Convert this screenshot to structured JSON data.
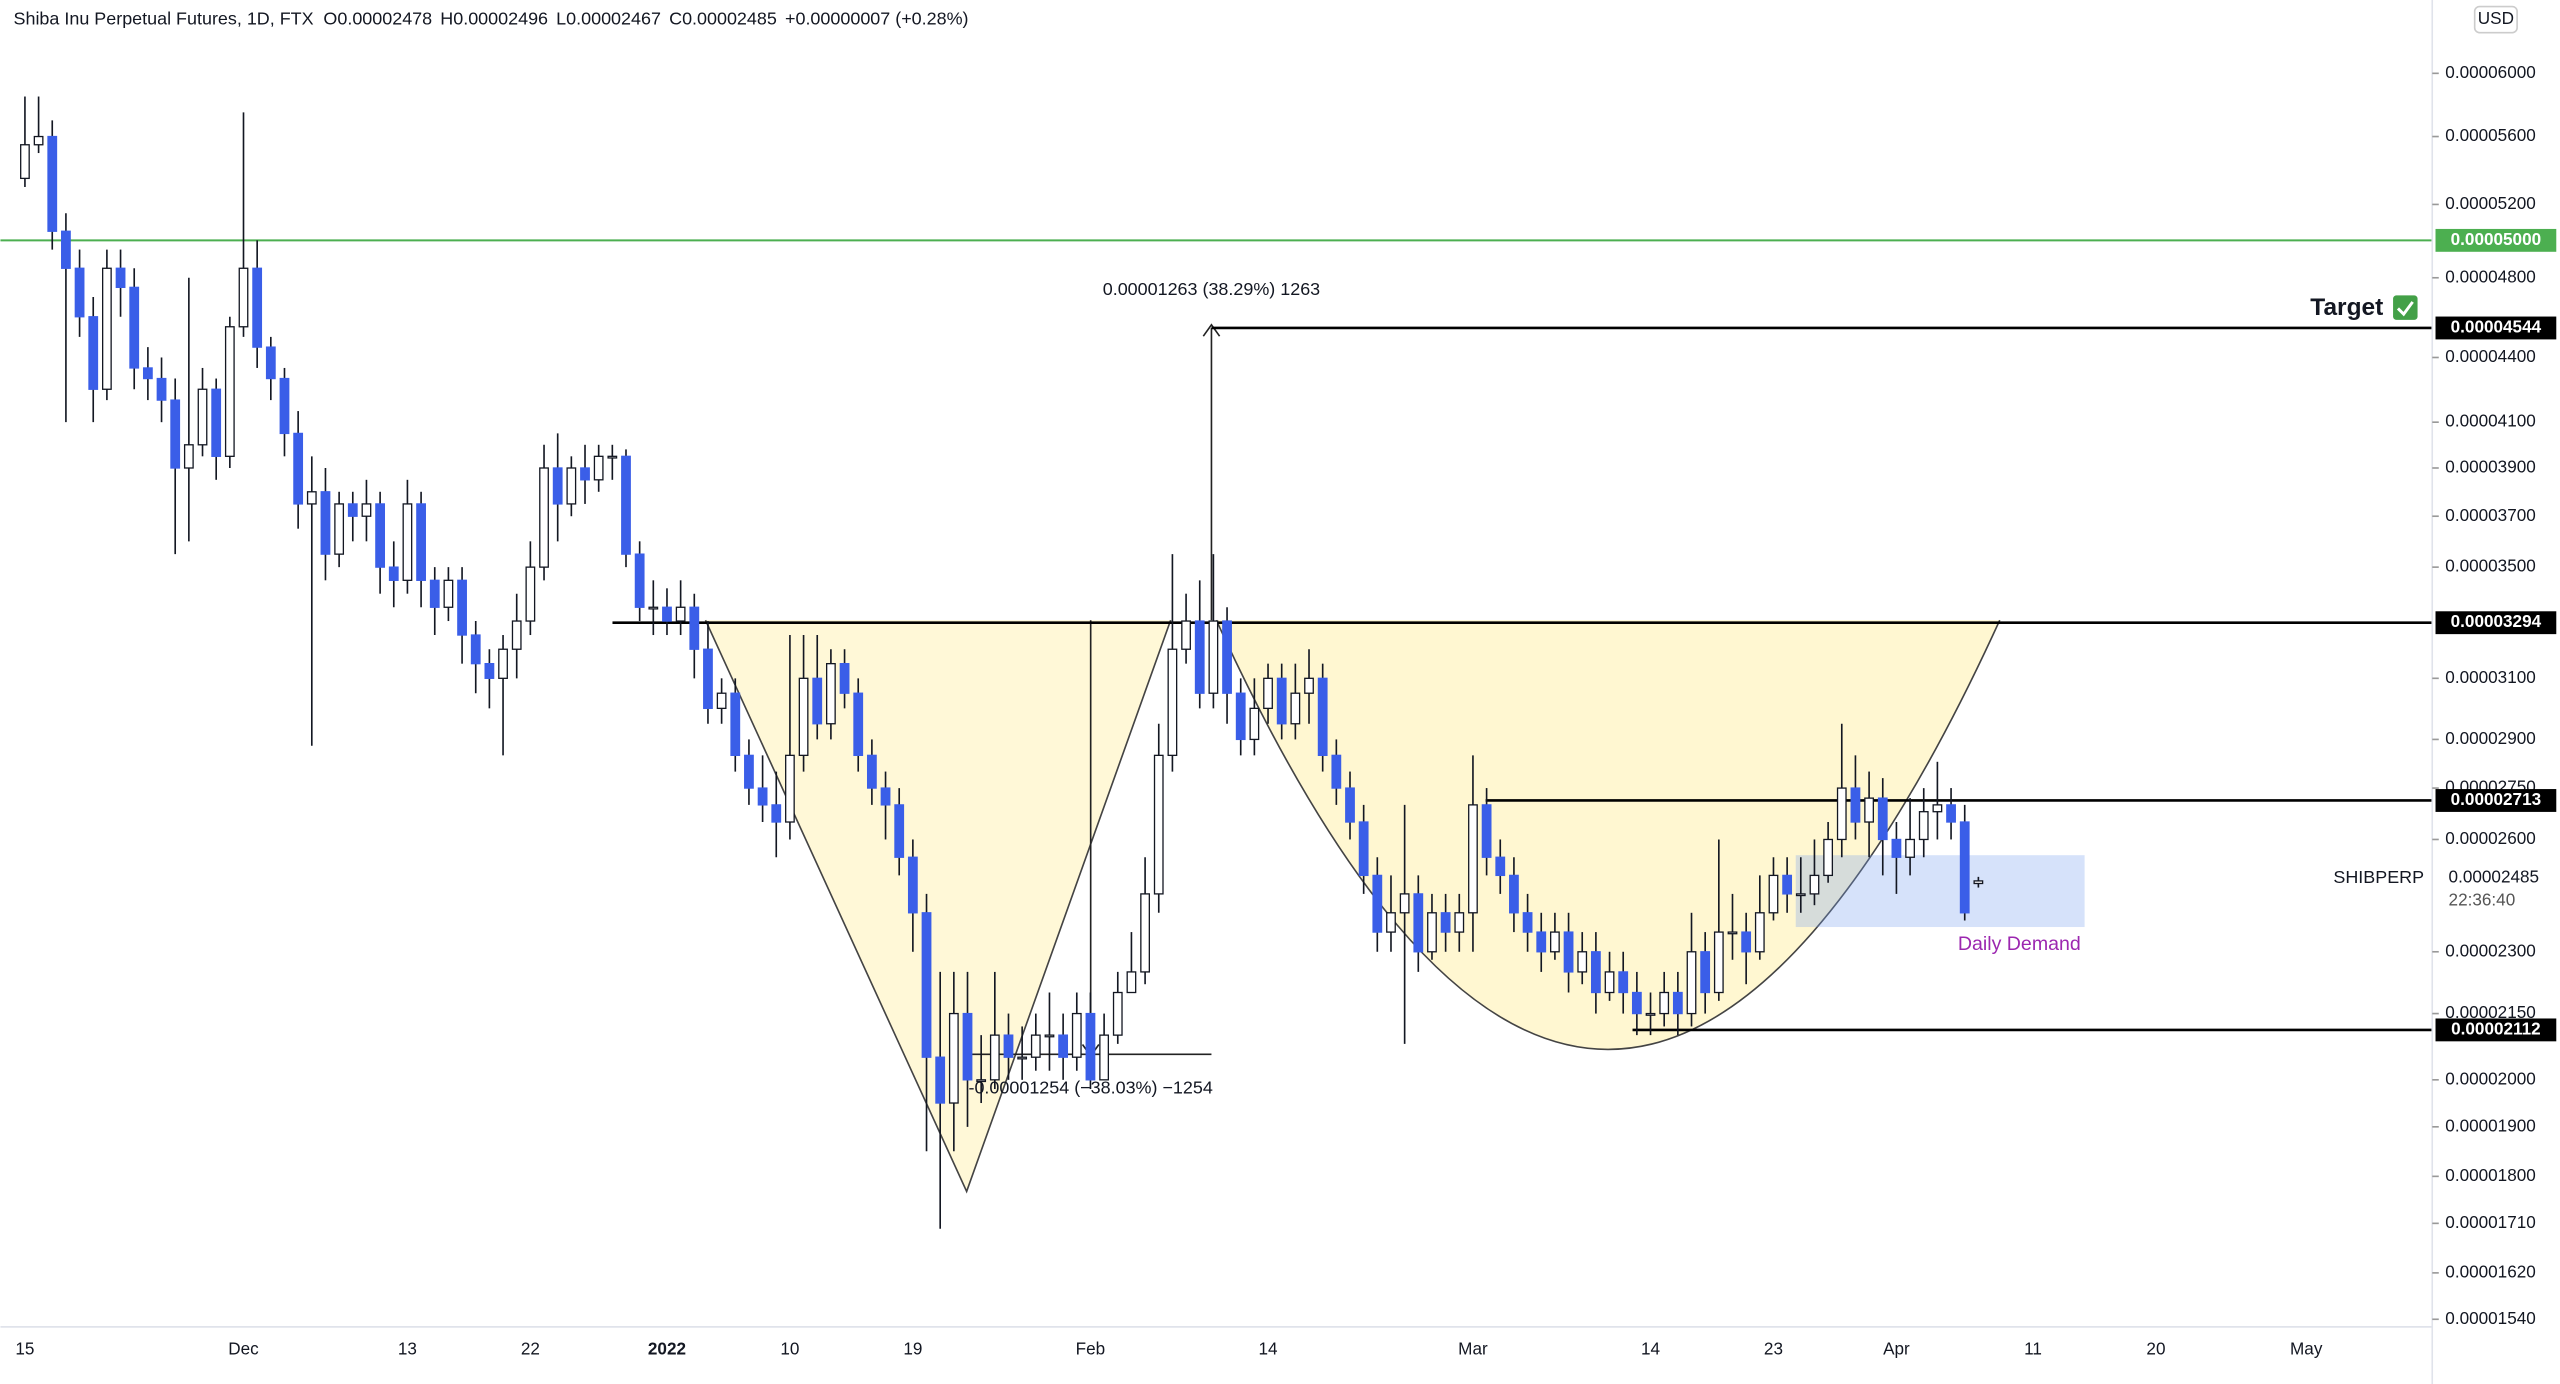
{
  "header": {
    "title": "Shiba Inu Perpetual Futures, 1D, FTX",
    "items": [
      "O0.00002478",
      "H0.00002496",
      "L0.00002467",
      "C0.00002485",
      "+0.00000007 (+0.28%)"
    ],
    "currency": "USD"
  },
  "chart_data": {
    "type": "candlestick",
    "log_scale": true,
    "grid": false,
    "ylim": [
      1.53e-05,
      6.5e-05
    ],
    "yticks": [
      {
        "value": 6e-05,
        "label": "0.00006000"
      },
      {
        "value": 5.6e-05,
        "label": "0.00005600"
      },
      {
        "value": 5.2e-05,
        "label": "0.00005200"
      },
      {
        "value": 4.8e-05,
        "label": "0.00004800"
      },
      {
        "value": 4.4e-05,
        "label": "0.00004400"
      },
      {
        "value": 4.1e-05,
        "label": "0.00004100"
      },
      {
        "value": 3.9e-05,
        "label": "0.00003900"
      },
      {
        "value": 3.7e-05,
        "label": "0.00003700"
      },
      {
        "value": 3.5e-05,
        "label": "0.00003500"
      },
      {
        "value": 3.1e-05,
        "label": "0.00003100"
      },
      {
        "value": 2.9e-05,
        "label": "0.00002900"
      },
      {
        "value": 2.75e-05,
        "label": "0.00002750"
      },
      {
        "value": 2.6e-05,
        "label": "0.00002600"
      },
      {
        "value": 2.3e-05,
        "label": "0.00002300"
      },
      {
        "value": 2.15e-05,
        "label": "0.00002150"
      },
      {
        "value": 2e-05,
        "label": "0.00002000"
      },
      {
        "value": 1.9e-05,
        "label": "0.00001900"
      },
      {
        "value": 1.8e-05,
        "label": "0.00001800"
      },
      {
        "value": 1.71e-05,
        "label": "0.00001710"
      },
      {
        "value": 1.62e-05,
        "label": "0.00001620"
      },
      {
        "value": 1.54e-05,
        "label": "0.00001540"
      }
    ],
    "categories": [
      "15",
      null,
      null,
      null,
      null,
      null,
      null,
      null,
      null,
      null,
      null,
      null,
      null,
      null,
      null,
      null,
      "Dec",
      null,
      null,
      null,
      null,
      null,
      null,
      null,
      null,
      null,
      null,
      null,
      "13",
      null,
      null,
      null,
      null,
      null,
      null,
      null,
      null,
      "22",
      null,
      null,
      null,
      null,
      null,
      null,
      null,
      null,
      null,
      "2022",
      null,
      null,
      null,
      null,
      null,
      null,
      null,
      null,
      "10",
      null,
      null,
      null,
      null,
      null,
      null,
      null,
      null,
      "19",
      null,
      null,
      null,
      null,
      null,
      null,
      null,
      null,
      null,
      null,
      null,
      null,
      "Feb",
      null,
      null,
      null,
      null,
      null,
      null,
      null,
      null,
      null,
      null,
      null,
      null,
      "14",
      null,
      null,
      null,
      null,
      null,
      null,
      null,
      null,
      null,
      null,
      null,
      null,
      null,
      null,
      "Mar",
      null,
      null,
      null,
      null,
      null,
      null,
      null,
      null,
      null,
      null,
      null,
      null,
      "14",
      null,
      null,
      null,
      null,
      null,
      null,
      null,
      null,
      "23",
      null,
      null,
      null,
      null,
      null,
      null,
      null,
      null,
      "Apr",
      null,
      null,
      null,
      null,
      null,
      null,
      null,
      null,
      null,
      "11",
      null,
      null,
      null,
      null,
      null,
      null,
      null,
      null,
      "20",
      null,
      null,
      null,
      null,
      null,
      null,
      null,
      null,
      null,
      null,
      "May"
    ],
    "up_color": "#ffffff",
    "down_color": "#3a5ee8",
    "wick_color": "#131722",
    "open": [
      5.35e-05,
      5.55e-05,
      5.6e-05,
      5.05e-05,
      4.85e-05,
      4.6e-05,
      4.25e-05,
      4.85e-05,
      4.75e-05,
      4.35e-05,
      4.3e-05,
      4.2e-05,
      3.9e-05,
      4e-05,
      4.25e-05,
      3.95e-05,
      4.55e-05,
      4.85e-05,
      4.45e-05,
      4.3e-05,
      4.05e-05,
      3.75e-05,
      3.8e-05,
      3.55e-05,
      3.75e-05,
      3.7e-05,
      3.75e-05,
      3.5e-05,
      3.45e-05,
      3.75e-05,
      3.45e-05,
      3.35e-05,
      3.45e-05,
      3.25e-05,
      3.15e-05,
      3.1e-05,
      3.2e-05,
      3.3e-05,
      3.5e-05,
      3.9e-05,
      3.75e-05,
      3.9e-05,
      3.85e-05,
      3.95e-05,
      3.95e-05,
      3.55e-05,
      3.35e-05,
      3.35e-05,
      3.3e-05,
      3.35e-05,
      3.2e-05,
      3e-05,
      3.05e-05,
      2.85e-05,
      2.75e-05,
      2.7e-05,
      2.65e-05,
      2.85e-05,
      3.1e-05,
      2.95e-05,
      3.15e-05,
      3.05e-05,
      2.85e-05,
      2.75e-05,
      2.7e-05,
      2.55e-05,
      2.4e-05,
      2.05e-05,
      1.95e-05,
      2.15e-05,
      2e-05,
      2e-05,
      2.1e-05,
      2.05e-05,
      2.05e-05,
      2.1e-05,
      2.1e-05,
      2.05e-05,
      2.15e-05,
      2e-05,
      2.1e-05,
      2.2e-05,
      2.25e-05,
      2.45e-05,
      2.85e-05,
      3.2e-05,
      3.3e-05,
      3.05e-05,
      3.3e-05,
      3.05e-05,
      2.9e-05,
      3e-05,
      3.1e-05,
      2.95e-05,
      3.05e-05,
      3.1e-05,
      2.85e-05,
      2.75e-05,
      2.65e-05,
      2.5e-05,
      2.35e-05,
      2.4e-05,
      2.45e-05,
      2.3e-05,
      2.4e-05,
      2.35e-05,
      2.4e-05,
      2.7e-05,
      2.55e-05,
      2.5e-05,
      2.4e-05,
      2.35e-05,
      2.3e-05,
      2.35e-05,
      2.25e-05,
      2.3e-05,
      2.2e-05,
      2.25e-05,
      2.2e-05,
      2.15e-05,
      2.15e-05,
      2.2e-05,
      2.15e-05,
      2.3e-05,
      2.2e-05,
      2.35e-05,
      2.35e-05,
      2.3e-05,
      2.4e-05,
      2.5e-05,
      2.45e-05,
      2.45e-05,
      2.5e-05,
      2.6e-05,
      2.75e-05,
      2.65e-05,
      2.72e-05,
      2.6e-05,
      2.55e-05,
      2.6e-05,
      2.68e-05,
      2.7e-05,
      2.65e-05,
      2.478e-05,
      null,
      null,
      null,
      null,
      null,
      null,
      null,
      null,
      null,
      null,
      null,
      null,
      null,
      null,
      null,
      null,
      null,
      null,
      null,
      null,
      null,
      null,
      null,
      null
    ],
    "high": [
      5.85e-05,
      5.85e-05,
      5.7e-05,
      5.15e-05,
      4.95e-05,
      4.7e-05,
      4.95e-05,
      4.95e-05,
      4.85e-05,
      4.45e-05,
      4.4e-05,
      4.3e-05,
      4.8e-05,
      4.35e-05,
      4.3e-05,
      4.6e-05,
      5.75e-05,
      5e-05,
      4.5e-05,
      4.35e-05,
      4.15e-05,
      3.95e-05,
      3.9e-05,
      3.8e-05,
      3.8e-05,
      3.85e-05,
      3.8e-05,
      3.6e-05,
      3.85e-05,
      3.8e-05,
      3.5e-05,
      3.5e-05,
      3.5e-05,
      3.3e-05,
      3.2e-05,
      3.25e-05,
      3.4e-05,
      3.6e-05,
      4e-05,
      4.05e-05,
      3.95e-05,
      4e-05,
      4e-05,
      4e-05,
      3.98e-05,
      3.6e-05,
      3.45e-05,
      3.42e-05,
      3.45e-05,
      3.4e-05,
      3.3e-05,
      3.1e-05,
      3.1e-05,
      2.9e-05,
      2.85e-05,
      2.8e-05,
      3.25e-05,
      3.25e-05,
      3.25e-05,
      3.2e-05,
      3.2e-05,
      3.1e-05,
      2.9e-05,
      2.8e-05,
      2.75e-05,
      2.6e-05,
      2.45e-05,
      2.25e-05,
      2.25e-05,
      2.25e-05,
      2.1e-05,
      2.25e-05,
      2.15e-05,
      2.12e-05,
      2.15e-05,
      2.2e-05,
      2.15e-05,
      2.2e-05,
      2.2e-05,
      2.15e-05,
      2.25e-05,
      2.35e-05,
      2.55e-05,
      2.95e-05,
      3.55e-05,
      3.4e-05,
      3.45e-05,
      3.55e-05,
      3.35e-05,
      3.1e-05,
      3.1e-05,
      3.15e-05,
      3.15e-05,
      3.15e-05,
      3.2e-05,
      3.15e-05,
      2.9e-05,
      2.8e-05,
      2.7e-05,
      2.55e-05,
      2.5e-05,
      2.7e-05,
      2.5e-05,
      2.45e-05,
      2.45e-05,
      2.45e-05,
      2.85e-05,
      2.75e-05,
      2.6e-05,
      2.55e-05,
      2.45e-05,
      2.4e-05,
      2.4e-05,
      2.4e-05,
      2.35e-05,
      2.35e-05,
      2.3e-05,
      2.3e-05,
      2.25e-05,
      2.2e-05,
      2.25e-05,
      2.25e-05,
      2.4e-05,
      2.35e-05,
      2.6e-05,
      2.45e-05,
      2.4e-05,
      2.5e-05,
      2.55e-05,
      2.55e-05,
      2.55e-05,
      2.6e-05,
      2.65e-05,
      2.95e-05,
      2.85e-05,
      2.8e-05,
      2.78e-05,
      2.65e-05,
      2.72e-05,
      2.75e-05,
      2.83e-05,
      2.75e-05,
      2.7e-05,
      2.496e-05,
      null,
      null,
      null,
      null,
      null,
      null,
      null,
      null,
      null,
      null,
      null,
      null,
      null,
      null,
      null,
      null,
      null,
      null,
      null,
      null,
      null,
      null,
      null,
      null
    ],
    "low": [
      5.3e-05,
      5.5e-05,
      4.95e-05,
      4.1e-05,
      4.5e-05,
      4.1e-05,
      4.2e-05,
      4.6e-05,
      4.25e-05,
      4.2e-05,
      4.1e-05,
      3.55e-05,
      3.6e-05,
      3.95e-05,
      3.85e-05,
      3.9e-05,
      4.5e-05,
      4.35e-05,
      4.2e-05,
      3.95e-05,
      3.65e-05,
      2.88e-05,
      3.45e-05,
      3.5e-05,
      3.6e-05,
      3.6e-05,
      3.4e-05,
      3.35e-05,
      3.4e-05,
      3.35e-05,
      3.25e-05,
      3.3e-05,
      3.15e-05,
      3.05e-05,
      3e-05,
      2.85e-05,
      3.1e-05,
      3.25e-05,
      3.45e-05,
      3.6e-05,
      3.7e-05,
      3.75e-05,
      3.8e-05,
      3.85e-05,
      3.5e-05,
      3.3e-05,
      3.25e-05,
      3.25e-05,
      3.25e-05,
      3.1e-05,
      2.95e-05,
      2.95e-05,
      2.8e-05,
      2.7e-05,
      2.65e-05,
      2.55e-05,
      2.6e-05,
      2.8e-05,
      2.9e-05,
      2.9e-05,
      3e-05,
      2.8e-05,
      2.7e-05,
      2.6e-05,
      2.5e-05,
      2.3e-05,
      1.85e-05,
      1.7e-05,
      1.85e-05,
      1.9e-05,
      1.95e-05,
      1.98e-05,
      2e-05,
      2e-05,
      2.02e-05,
      2.02e-05,
      2e-05,
      2.02e-05,
      1.98e-05,
      2e-05,
      2.08e-05,
      2.2e-05,
      2.22e-05,
      2.4e-05,
      2.8e-05,
      3.15e-05,
      3e-05,
      3e-05,
      2.95e-05,
      2.85e-05,
      2.85e-05,
      2.95e-05,
      2.9e-05,
      2.9e-05,
      2.95e-05,
      2.8e-05,
      2.7e-05,
      2.6e-05,
      2.45e-05,
      2.3e-05,
      2.3e-05,
      2.08e-05,
      2.25e-05,
      2.28e-05,
      2.3e-05,
      2.3e-05,
      2.3e-05,
      2.5e-05,
      2.45e-05,
      2.35e-05,
      2.3e-05,
      2.25e-05,
      2.28e-05,
      2.2e-05,
      2.22e-05,
      2.15e-05,
      2.18e-05,
      2.15e-05,
      2.1e-05,
      2.1e-05,
      2.12e-05,
      2.1e-05,
      2.12e-05,
      2.15e-05,
      2.18e-05,
      2.28e-05,
      2.22e-05,
      2.28e-05,
      2.38e-05,
      2.4e-05,
      2.4e-05,
      2.42e-05,
      2.48e-05,
      2.55e-05,
      2.6e-05,
      2.55e-05,
      2.5e-05,
      2.45e-05,
      2.5e-05,
      2.55e-05,
      2.6e-05,
      2.6e-05,
      2.38e-05,
      2.467e-05,
      null,
      null,
      null,
      null,
      null,
      null,
      null,
      null,
      null,
      null,
      null,
      null,
      null,
      null,
      null,
      null,
      null,
      null,
      null,
      null,
      null,
      null,
      null,
      null
    ],
    "close": [
      5.55e-05,
      5.6e-05,
      5.05e-05,
      4.85e-05,
      4.6e-05,
      4.25e-05,
      4.85e-05,
      4.75e-05,
      4.35e-05,
      4.3e-05,
      4.2e-05,
      3.9e-05,
      4e-05,
      4.25e-05,
      3.95e-05,
      4.55e-05,
      4.85e-05,
      4.45e-05,
      4.3e-05,
      4.05e-05,
      3.75e-05,
      3.8e-05,
      3.55e-05,
      3.75e-05,
      3.7e-05,
      3.75e-05,
      3.5e-05,
      3.45e-05,
      3.75e-05,
      3.45e-05,
      3.35e-05,
      3.45e-05,
      3.25e-05,
      3.15e-05,
      3.1e-05,
      3.2e-05,
      3.3e-05,
      3.5e-05,
      3.9e-05,
      3.75e-05,
      3.9e-05,
      3.85e-05,
      3.95e-05,
      3.95e-05,
      3.55e-05,
      3.35e-05,
      3.35e-05,
      3.3e-05,
      3.35e-05,
      3.2e-05,
      3e-05,
      3.05e-05,
      2.85e-05,
      2.75e-05,
      2.7e-05,
      2.65e-05,
      2.85e-05,
      3.1e-05,
      2.95e-05,
      3.15e-05,
      3.05e-05,
      2.85e-05,
      2.75e-05,
      2.7e-05,
      2.55e-05,
      2.4e-05,
      2.05e-05,
      1.95e-05,
      2.15e-05,
      2e-05,
      2e-05,
      2.1e-05,
      2.05e-05,
      2.05e-05,
      2.1e-05,
      2.1e-05,
      2.05e-05,
      2.15e-05,
      2e-05,
      2.1e-05,
      2.2e-05,
      2.25e-05,
      2.45e-05,
      2.85e-05,
      3.2e-05,
      3.3e-05,
      3.05e-05,
      3.3e-05,
      3.05e-05,
      2.9e-05,
      3e-05,
      3.1e-05,
      2.95e-05,
      3.05e-05,
      3.1e-05,
      2.85e-05,
      2.75e-05,
      2.65e-05,
      2.5e-05,
      2.35e-05,
      2.4e-05,
      2.45e-05,
      2.3e-05,
      2.4e-05,
      2.35e-05,
      2.4e-05,
      2.7e-05,
      2.55e-05,
      2.5e-05,
      2.4e-05,
      2.35e-05,
      2.3e-05,
      2.35e-05,
      2.25e-05,
      2.3e-05,
      2.2e-05,
      2.25e-05,
      2.2e-05,
      2.15e-05,
      2.15e-05,
      2.2e-05,
      2.15e-05,
      2.3e-05,
      2.2e-05,
      2.35e-05,
      2.35e-05,
      2.3e-05,
      2.4e-05,
      2.5e-05,
      2.45e-05,
      2.45e-05,
      2.5e-05,
      2.6e-05,
      2.75e-05,
      2.65e-05,
      2.72e-05,
      2.6e-05,
      2.55e-05,
      2.6e-05,
      2.68e-05,
      2.7e-05,
      2.65e-05,
      2.4e-05,
      2.485e-05,
      null,
      null,
      null,
      null,
      null,
      null,
      null,
      null,
      null,
      null,
      null,
      null,
      null,
      null,
      null,
      null,
      null,
      null,
      null,
      null,
      null,
      null,
      null,
      null
    ],
    "levels": [
      {
        "value": 5e-05,
        "label": "0.00005000",
        "color": "#4caf50"
      },
      {
        "value": 4.544e-05,
        "label": "0.00004544",
        "color": "#000000"
      },
      {
        "value": 3.294e-05,
        "label": "0.00003294",
        "color": "#000000"
      },
      {
        "value": 2.713e-05,
        "label": "0.00002713",
        "color": "#000000"
      },
      {
        "value": 2.112e-05,
        "label": "0.00002112",
        "color": "#000000"
      }
    ],
    "annotations": {
      "target": "Target",
      "measure_up": "0.00001263 (38.29%) 1263",
      "measure_down": "-0.00001254 (−38.03%) −1254",
      "demand_zone": "Daily Demand"
    },
    "symbol": "SHIBPERP",
    "last_price": "0.00002485",
    "countdown": "22:36:40"
  }
}
